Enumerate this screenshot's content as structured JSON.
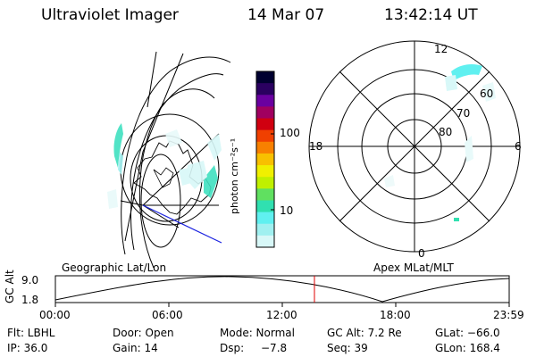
{
  "header": {
    "instrument": "Ultraviolet Imager",
    "date": "14 Mar 07",
    "time": "13:42:14 UT"
  },
  "colorbar": {
    "unit_label": "photon cm⁻²s⁻¹",
    "ticks": [
      "100",
      "10"
    ],
    "colors": [
      "#000030",
      "#2a0060",
      "#6a00a0",
      "#a00060",
      "#d00010",
      "#f04000",
      "#f88000",
      "#f8c000",
      "#f0f000",
      "#c0f000",
      "#60e060",
      "#30e0b0",
      "#60f0f0",
      "#a0f0f0",
      "#d8f8f8"
    ]
  },
  "polar_plot": {
    "mlt_labels": {
      "top": "12",
      "left": "18",
      "right": "6",
      "bottom": "0"
    },
    "lat_labels": [
      "60",
      "70",
      "80"
    ]
  },
  "timeline": {
    "left_title": "Geographic Lat/Lon",
    "right_title": "Apex  MLat/MLT",
    "y_axis_label": "GC Alt",
    "y_ticks": [
      "9.0",
      "1.8"
    ],
    "x_ticks": [
      "00:00",
      "06:00",
      "12:00",
      "18:00",
      "23:59"
    ],
    "current_time_hours": 13.7,
    "marker_color": "#e00000"
  },
  "status": {
    "row1": {
      "filter": "Flt: LBHL",
      "door": "Door: Open",
      "mode": "Mode: Normal",
      "gc_alt": "GC Alt: 7.2 Re",
      "glat": "GLat: −66.0"
    },
    "row2": {
      "ip": "IP: 36.0",
      "gain": "Gain: 14",
      "dsp_label": "Dsp:",
      "dsp_value": "−7.8",
      "seq": "Seq: 39",
      "glon": "GLon: 168.4"
    }
  }
}
